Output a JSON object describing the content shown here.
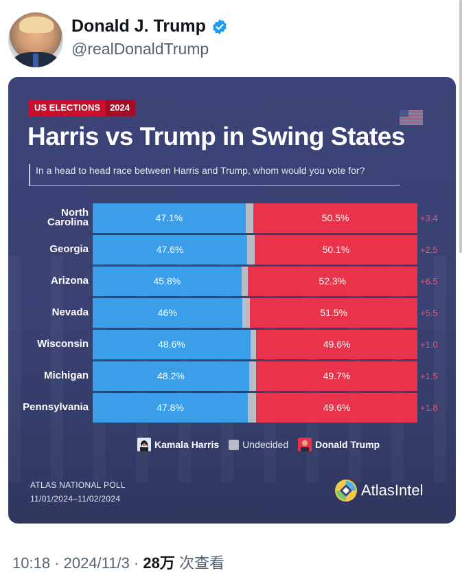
{
  "tweet": {
    "author_name": "Donald J. Trump",
    "author_handle": "@realDonaldTrump",
    "footer_text": "10:18 · 2024/11/3 · ",
    "footer_views": "28万",
    "footer_suffix": " 次查看"
  },
  "card": {
    "badge_left": "US ELECTIONS",
    "badge_right": "2024",
    "title": "Harris vs Trump in Swing States",
    "subtitle": "In a head to head race between Harris and Trump, whom would you vote for?",
    "poll_name": "ATLAS NATIONAL POLL",
    "poll_dates": "11/01/2024–11/02/2024",
    "brand": "AtlasIntel"
  },
  "legend": {
    "harris": "Kamala Harris",
    "undecided": "Undecided",
    "trump": "Donald Trump"
  },
  "colors": {
    "harris": "#3a9ee8",
    "undecided": "#b9bcc6",
    "trump": "#e8334a",
    "card_bg": "#3c4477",
    "lead_text": "#ff4b5f"
  },
  "chart_data": {
    "type": "bar",
    "stacked": true,
    "orientation": "horizontal",
    "categories": [
      "North Carolina",
      "Georgia",
      "Arizona",
      "Nevada",
      "Wisconsin",
      "Michigan",
      "Pennsylvania"
    ],
    "series": [
      {
        "name": "Kamala Harris",
        "values": [
          47.1,
          47.6,
          45.8,
          46,
          48.6,
          48.2,
          47.8
        ],
        "labels": [
          "47.1%",
          "47.6%",
          "45.8%",
          "46%",
          "48.6%",
          "48.2%",
          "47.8%"
        ]
      },
      {
        "name": "Undecided",
        "values": [
          2.4,
          2.3,
          1.9,
          2.5,
          1.8,
          2.1,
          2.6
        ]
      },
      {
        "name": "Donald Trump",
        "values": [
          50.5,
          50.1,
          52.3,
          51.5,
          49.6,
          49.7,
          49.6
        ],
        "labels": [
          "50.5%",
          "50.1%",
          "52.3%",
          "51.5%",
          "49.6%",
          "49.7%",
          "49.6%"
        ]
      }
    ],
    "leads": [
      "+3.4",
      "+2.5",
      "+6.5",
      "+5.5",
      "+1.0",
      "+1.5",
      "+1.8"
    ],
    "title": "Harris vs Trump in Swing States",
    "xlim": [
      0,
      100
    ]
  }
}
